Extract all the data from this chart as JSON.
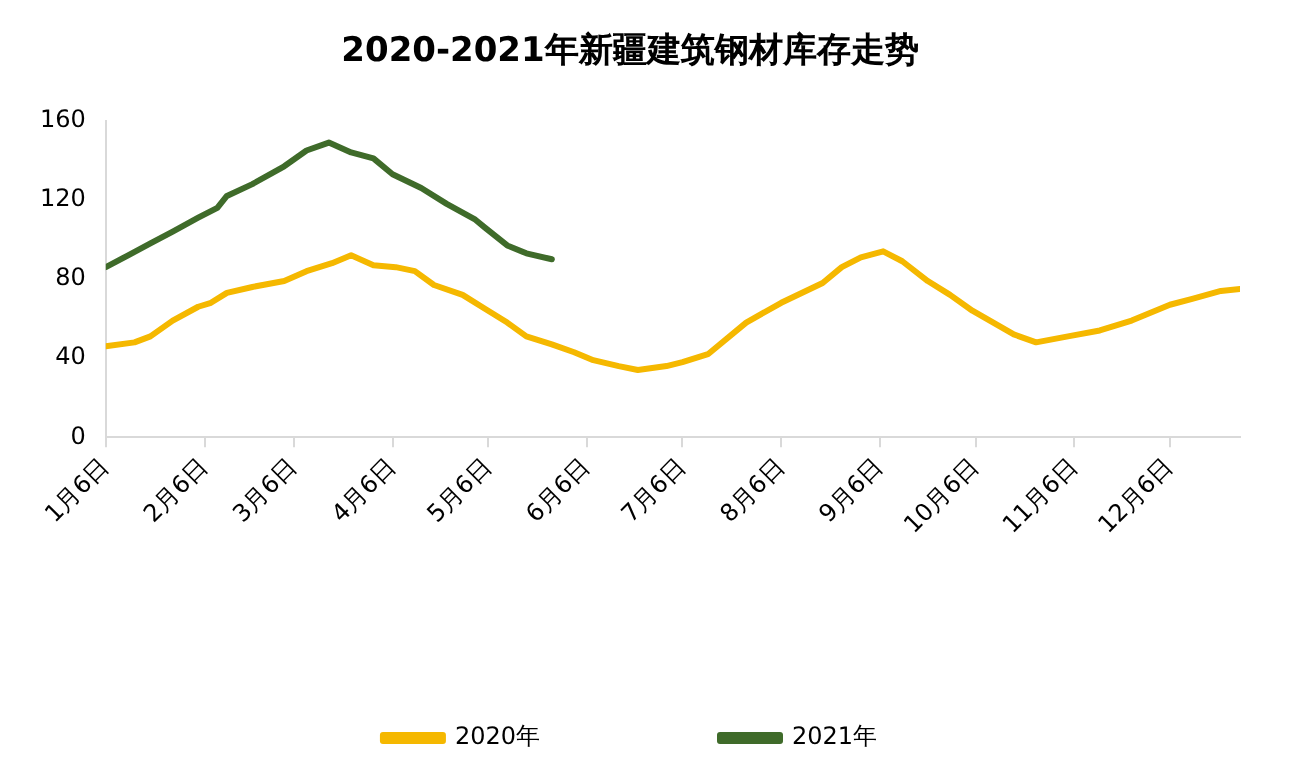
{
  "chart_data": {
    "type": "line",
    "title": "2020-2021年新疆建筑钢材库存走势",
    "series": [
      {
        "name": "2020年",
        "color": "#f5b800",
        "x": [
          "--01-06",
          "--01-15",
          "--01-20",
          "--01-27",
          "--02-04",
          "--02-08",
          "--02-13",
          "--02-21",
          "--03-03",
          "--03-10",
          "--03-18",
          "--03-24",
          "--03-31",
          "--04-07",
          "--04-13",
          "--04-19",
          "--04-28",
          "--05-05",
          "--05-12",
          "--05-18",
          "--05-26",
          "--06-02",
          "--06-08",
          "--06-16",
          "--06-22",
          "--07-01",
          "--07-06",
          "--07-14",
          "--07-26",
          "--08-06",
          "--08-19",
          "--08-25",
          "--08-31",
          "--09-07",
          "--09-13",
          "--09-21",
          "--09-28",
          "--10-05",
          "--10-18",
          "--10-25",
          "--11-04",
          "--11-14",
          "--11-24",
          "--12-06",
          "--12-13",
          "--12-22",
          "--12-28"
        ],
        "values": [
          46,
          48,
          51,
          59,
          66,
          68,
          73,
          76,
          79,
          84,
          88,
          92,
          87,
          86,
          84,
          77,
          72,
          65,
          58,
          51,
          47,
          43,
          39,
          36,
          34,
          36,
          38,
          42,
          58,
          68,
          78,
          86,
          91,
          94,
          89,
          79,
          72,
          64,
          52,
          48,
          51,
          54,
          59,
          67,
          70,
          74,
          75
        ]
      },
      {
        "name": "2021年",
        "color": "#3f6b2a",
        "x": [
          "--01-06",
          "--01-13",
          "--01-20",
          "--01-27",
          "--02-04",
          "--02-10",
          "--02-13",
          "--02-21",
          "--03-03",
          "--03-10",
          "--03-17",
          "--03-24",
          "--03-31",
          "--04-06",
          "--04-15",
          "--04-23",
          "--05-02",
          "--05-05",
          "--05-12",
          "--05-18",
          "--05-26"
        ],
        "values": [
          86,
          92,
          98,
          104,
          111,
          116,
          122,
          128,
          137,
          145,
          149,
          144,
          141,
          133,
          126,
          118,
          110,
          106,
          97,
          93,
          90
        ]
      }
    ],
    "xlim": [
      "--01-06",
      "--12-28"
    ],
    "xticks": [
      {
        "value": "--01-06",
        "label": "1月6日"
      },
      {
        "value": "--02-06",
        "label": "2月6日"
      },
      {
        "value": "--03-06",
        "label": "3月6日"
      },
      {
        "value": "--04-06",
        "label": "4月6日"
      },
      {
        "value": "--05-06",
        "label": "5月6日"
      },
      {
        "value": "--06-06",
        "label": "6月6日"
      },
      {
        "value": "--07-06",
        "label": "7月6日"
      },
      {
        "value": "--08-06",
        "label": "8月6日"
      },
      {
        "value": "--09-06",
        "label": "9月6日"
      },
      {
        "value": "--10-06",
        "label": "10月6日"
      },
      {
        "value": "--11-06",
        "label": "11月6日"
      },
      {
        "value": "--12-06",
        "label": "12月6日"
      }
    ],
    "ylim": [
      0,
      160
    ],
    "yticks": [
      0,
      40,
      80,
      120,
      160
    ],
    "grid": false,
    "legend": "bottom",
    "marker": "none",
    "line_style": "solid"
  }
}
